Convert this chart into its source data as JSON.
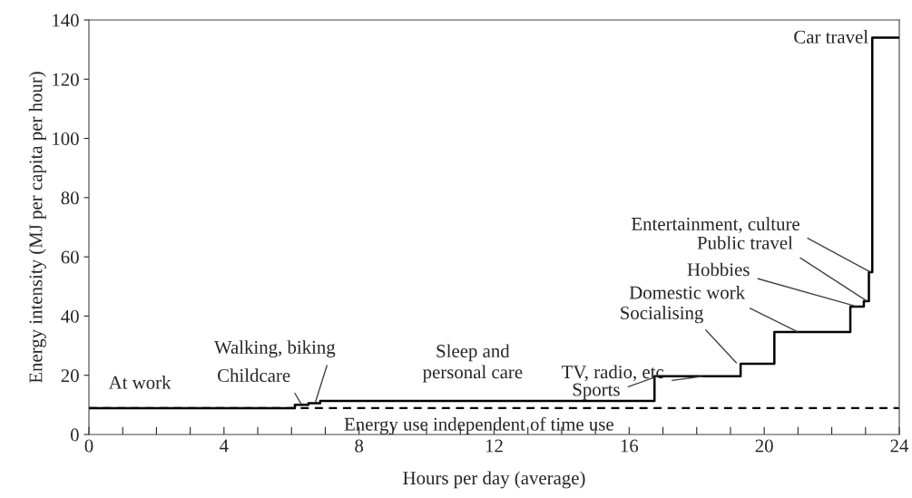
{
  "chart_data": {
    "type": "step",
    "xlabel": "Hours per day (average)",
    "ylabel": "Energy intensity (MJ per capita per hour)",
    "xlim": [
      0,
      24
    ],
    "ylim": [
      0,
      140
    ],
    "xticks": [
      0,
      {
        "value": 1,
        "label": null
      },
      {
        "value": 2,
        "label": null
      },
      {
        "value": 3,
        "label": null
      },
      4,
      {
        "value": 5,
        "label": null
      },
      {
        "value": 6,
        "label": null
      },
      {
        "value": 7,
        "label": null
      },
      8,
      {
        "value": 9,
        "label": null
      },
      {
        "value": 10,
        "label": null
      },
      {
        "value": 11,
        "label": null
      },
      12,
      {
        "value": 13,
        "label": null
      },
      {
        "value": 14,
        "label": null
      },
      {
        "value": 15,
        "label": null
      },
      16,
      {
        "value": 17,
        "label": null
      },
      {
        "value": 18,
        "label": null
      },
      {
        "value": 19,
        "label": null
      },
      20,
      {
        "value": 21,
        "label": null
      },
      {
        "value": 22,
        "label": null
      },
      {
        "value": 23,
        "label": null
      },
      24
    ],
    "yticks": [
      0,
      20,
      40,
      60,
      80,
      100,
      120,
      140
    ],
    "grid": false,
    "legend": false,
    "line_style": "solid",
    "marker": "none",
    "series": [
      {
        "color": "#000000",
        "x": [
          0,
          6.1,
          6.5,
          6.85,
          16.75,
          19.3,
          20.3,
          22.55,
          22.95,
          23.1,
          23.2,
          24
        ],
        "values": [
          8.9,
          10,
          10.6,
          11.3,
          19.7,
          23.9,
          34.6,
          43.2,
          45,
          54.8,
          134,
          134
        ]
      }
    ],
    "ref_lines": [
      {
        "axis": "y",
        "value": 8.9,
        "label": "Energy use independent of time use",
        "line_style": "dashed",
        "color": "#000000"
      }
    ],
    "annotations": [
      {
        "text": "At work",
        "x": 3,
        "y": 8.9
      },
      {
        "text": "Childcare",
        "x": 6.3,
        "y": 10
      },
      {
        "text": "Walking, biking",
        "x": 6.7,
        "y": 10.6
      },
      {
        "text": "Sleep and\npersonal care",
        "x": 12,
        "y": 11.3
      },
      {
        "text": "Sports",
        "x": 16.85,
        "y": 19.7
      },
      {
        "text": "TV, radio, etc",
        "x": 18.2,
        "y": 19.7
      },
      {
        "text": "Socialising",
        "x": 19.2,
        "y": 23.9
      },
      {
        "text": "Domestic work",
        "x": 21.0,
        "y": 34.6
      },
      {
        "text": "Hobbies",
        "x": 22.75,
        "y": 43.2
      },
      {
        "text": "Public travel",
        "x": 23.05,
        "y": 45
      },
      {
        "text": "Entertainment, culture",
        "x": 23.15,
        "y": 54.8
      },
      "Car travel"
    ]
  }
}
